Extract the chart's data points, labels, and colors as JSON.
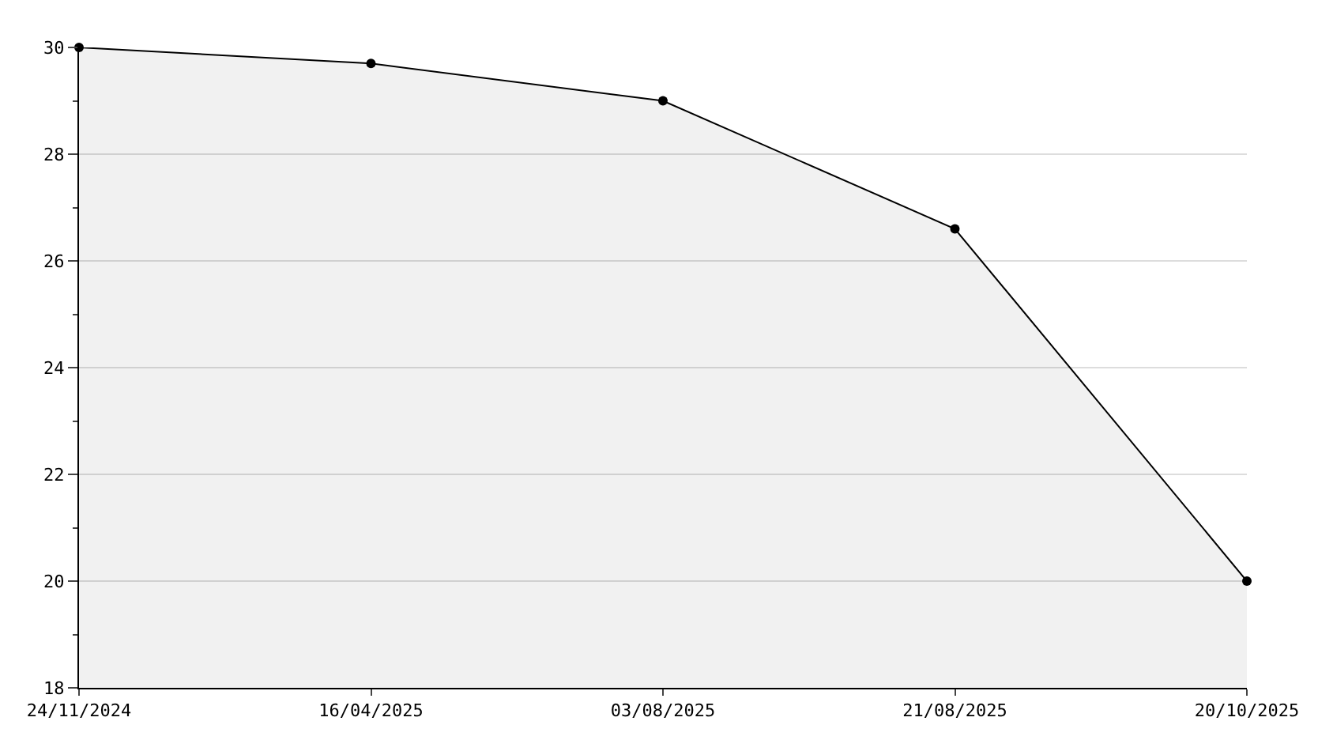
{
  "chart_data": {
    "type": "area",
    "categories": [
      "24/11/2024",
      "16/04/2025",
      "03/08/2025",
      "21/08/2025",
      "20/10/2025"
    ],
    "series": [
      {
        "color": "#000000",
        "values": [
          30,
          29.7,
          29.0,
          26.6,
          20
        ]
      }
    ],
    "ylim": [
      18,
      30
    ],
    "yticks": [
      18,
      {
        "value": 19,
        "label": null
      },
      20,
      {
        "value": 21,
        "label": null
      },
      22,
      {
        "value": 23,
        "label": null
      },
      24,
      {
        "value": 25,
        "label": null
      },
      26,
      {
        "value": 27,
        "label": null
      },
      28,
      {
        "value": 29,
        "label": null
      },
      30
    ],
    "grid": "y",
    "marker": "circle",
    "line_style": "solid",
    "legend": false
  }
}
